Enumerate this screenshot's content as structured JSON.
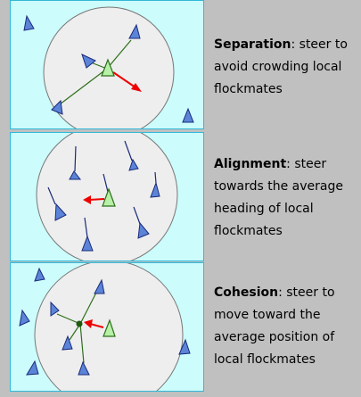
{
  "rules": [
    {
      "term": "Separation",
      "text": ": steer to avoid crowding local flockmates"
    },
    {
      "term": "Alignment",
      "text": ": steer towards the average heading of local flockmates"
    },
    {
      "term": "Cohesion",
      "text": ": steer to move toward the average position of local flockmates"
    }
  ],
  "colors": {
    "panel_background": "#ccfcfc",
    "panel_border": "#33b8d8",
    "neighborhood_fill": "#eeeeee",
    "neighbor_boid": "#5b84d8",
    "focus_boid": "#b8f0a8",
    "steering_arrow": "#ee0000",
    "link_line": "#2d6f1a",
    "page_background": "#c0c0c0"
  }
}
